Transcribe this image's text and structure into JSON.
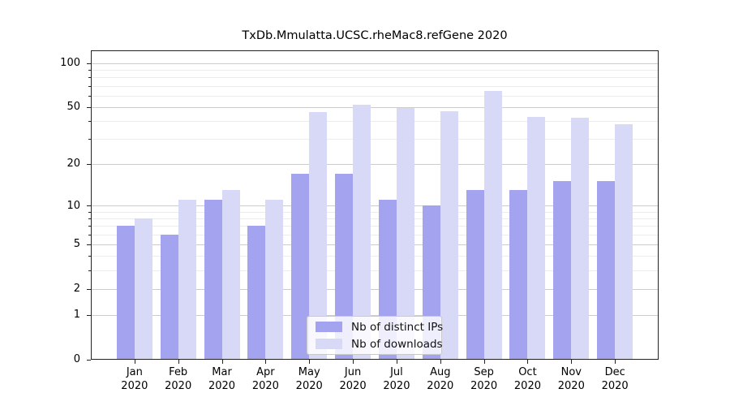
{
  "chart_data": {
    "type": "bar",
    "title": "TxDb.Mmulatta.UCSC.rheMac8.refGene 2020",
    "categories": [
      "Jan",
      "Feb",
      "Mar",
      "Apr",
      "May",
      "Jun",
      "Jul",
      "Aug",
      "Sep",
      "Oct",
      "Nov",
      "Dec"
    ],
    "year": "2020",
    "series": [
      {
        "name": "Nb of distinct IPs",
        "color": "#a3a3ef",
        "values": [
          7,
          6,
          11,
          7,
          17,
          17,
          11,
          10,
          13,
          13,
          15,
          15
        ]
      },
      {
        "name": "Nb of downloads",
        "color": "#d8d8f7",
        "values": [
          8,
          11,
          13,
          11,
          46,
          52,
          49,
          47,
          65,
          43,
          42,
          38
        ]
      }
    ],
    "xlabel": "",
    "ylabel": "",
    "yscale": "log1p",
    "yticks": [
      0,
      1,
      2,
      5,
      10,
      20,
      50,
      100
    ],
    "ytick_labels": [
      "0",
      "1",
      "2",
      "5",
      "10",
      "20",
      "50",
      "100"
    ],
    "minor_yticks": [
      3,
      4,
      6,
      7,
      8,
      9,
      30,
      40,
      60,
      70,
      80,
      90
    ],
    "ylim": [
      0,
      123
    ],
    "grid": true,
    "legend_position": "inside-bottom-center"
  }
}
